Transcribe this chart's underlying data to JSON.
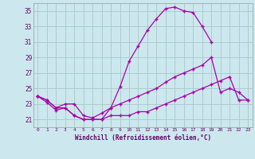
{
  "background_color": "#cce8ee",
  "grid_color": "#aacccc",
  "line_color": "#aa00aa",
  "xlabel": "Windchill (Refroidissement éolien,°C)",
  "xlabel_color": "#660066",
  "tick_color": "#660066",
  "xlim": [
    -0.5,
    23.5
  ],
  "ylim": [
    20.0,
    36.0
  ],
  "yticks": [
    21,
    23,
    25,
    27,
    29,
    31,
    33,
    35
  ],
  "xticks": [
    0,
    1,
    2,
    3,
    4,
    5,
    6,
    7,
    8,
    9,
    10,
    11,
    12,
    13,
    14,
    15,
    16,
    17,
    18,
    19,
    20,
    21,
    22,
    23
  ],
  "curve1_x": [
    0,
    1,
    2,
    3,
    4,
    5,
    6,
    7,
    8,
    9,
    10,
    11,
    12,
    13,
    14,
    15,
    16,
    17,
    18,
    19
  ],
  "curve1_y": [
    24.0,
    23.2,
    22.2,
    22.5,
    21.5,
    21.0,
    21.0,
    21.0,
    22.5,
    25.2,
    28.5,
    30.5,
    32.5,
    34.0,
    35.3,
    35.5,
    35.0,
    34.8,
    33.0,
    31.0
  ],
  "curve2_x": [
    0,
    1,
    2,
    3,
    4,
    5,
    6,
    7,
    8,
    9,
    10,
    11,
    12,
    13,
    14,
    15,
    16,
    17,
    18,
    19,
    20,
    21,
    22,
    23
  ],
  "curve2_y": [
    24.0,
    23.5,
    22.5,
    23.0,
    23.0,
    21.5,
    21.2,
    21.8,
    22.5,
    23.0,
    23.5,
    24.0,
    24.5,
    25.0,
    25.8,
    26.5,
    27.0,
    27.5,
    28.0,
    29.0,
    24.5,
    25.0,
    24.5,
    23.5
  ],
  "curve3_x": [
    0,
    1,
    2,
    3,
    4,
    5,
    6,
    7,
    8,
    9,
    10,
    11,
    12,
    13,
    14,
    15,
    16,
    17,
    18,
    19,
    20,
    21,
    22,
    23
  ],
  "curve3_y": [
    24.0,
    23.5,
    22.5,
    22.5,
    21.5,
    21.0,
    21.0,
    21.0,
    21.5,
    21.5,
    21.5,
    22.0,
    22.0,
    22.5,
    23.0,
    23.5,
    24.0,
    24.5,
    25.0,
    25.5,
    26.0,
    26.5,
    23.5,
    23.5
  ]
}
